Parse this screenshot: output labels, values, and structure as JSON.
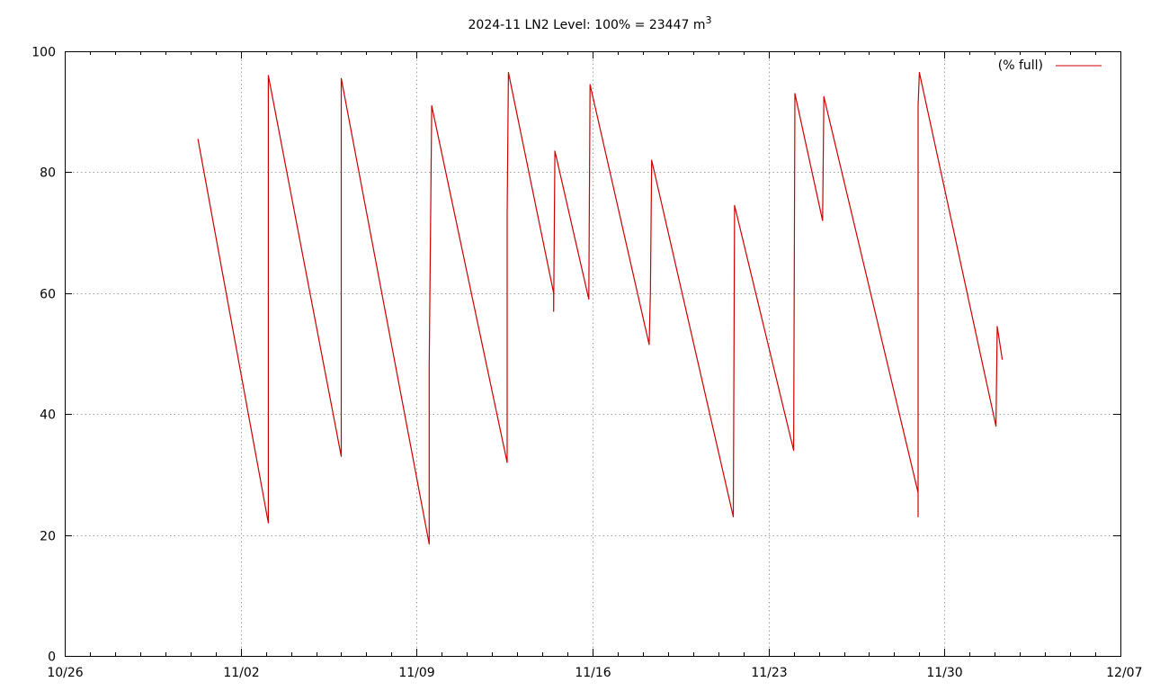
{
  "chart_data": {
    "type": "line",
    "title": "2024-11 LN2 Level: 100% = 23447 m",
    "title_superscript": "3",
    "xlabel": "",
    "ylabel": "",
    "x_ticks": [
      {
        "day": 0,
        "label": "10/26"
      },
      {
        "day": 7,
        "label": "11/02"
      },
      {
        "day": 14,
        "label": "11/09"
      },
      {
        "day": 21,
        "label": "11/16"
      },
      {
        "day": 28,
        "label": "11/23"
      },
      {
        "day": 35,
        "label": "11/30"
      },
      {
        "day": 42,
        "label": "12/07"
      }
    ],
    "x_minor_step": 1,
    "xlim": [
      0,
      42
    ],
    "ylim": [
      0,
      100
    ],
    "y_ticks": [
      0,
      20,
      40,
      60,
      80,
      100
    ],
    "grid": true,
    "legend_position": "top-right",
    "color": "#cc0000",
    "series": [
      {
        "name": "(% full)",
        "points": [
          [
            5.3,
            85.5
          ],
          [
            8.1,
            22.0
          ],
          [
            8.1,
            96.0
          ],
          [
            11.0,
            33.0
          ],
          [
            11.0,
            95.5
          ],
          [
            14.5,
            18.5
          ],
          [
            14.5,
            48.0
          ],
          [
            14.6,
            91.0
          ],
          [
            17.6,
            32.0
          ],
          [
            17.6,
            73.0
          ],
          [
            17.65,
            96.5
          ],
          [
            19.45,
            60.0
          ],
          [
            19.45,
            57.0
          ],
          [
            19.5,
            83.5
          ],
          [
            20.85,
            59.0
          ],
          [
            20.9,
            94.5
          ],
          [
            23.25,
            51.5
          ],
          [
            23.3,
            60.0
          ],
          [
            23.35,
            82.0
          ],
          [
            26.6,
            23.0
          ],
          [
            26.65,
            74.5
          ],
          [
            29.0,
            34.0
          ],
          [
            29.05,
            93.0
          ],
          [
            30.15,
            72.0
          ],
          [
            30.2,
            92.5
          ],
          [
            33.95,
            27.0
          ],
          [
            33.95,
            23.0
          ],
          [
            33.95,
            91.0
          ],
          [
            34.0,
            96.5
          ],
          [
            37.05,
            38.0
          ],
          [
            37.1,
            54.5
          ],
          [
            37.3,
            49.0
          ]
        ]
      }
    ]
  }
}
